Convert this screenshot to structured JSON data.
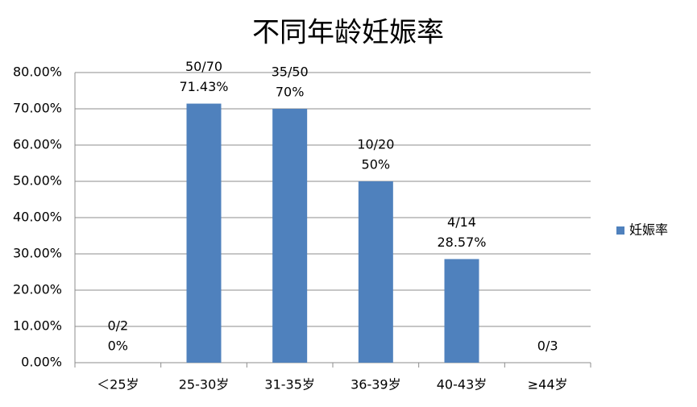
{
  "chart_data": {
    "type": "bar",
    "title": "不同年龄妊娠率",
    "categories": [
      "＜25岁",
      "25-30岁",
      "31-35岁",
      "36-39岁",
      "40-43岁",
      "≥44岁"
    ],
    "series": [
      {
        "name": "妊娠率",
        "color": "#4f81bd",
        "values": [
          0,
          71.43,
          70,
          50,
          28.57,
          0
        ],
        "value_labels": [
          "0%",
          "71.43%",
          "70%",
          "50%",
          "28.57%",
          null
        ],
        "fractions": [
          "0/2",
          "50/70",
          "35/50",
          "10/20",
          "4/14",
          "0/3"
        ]
      }
    ],
    "ylim": [
      0,
      80
    ],
    "yticks": [
      {
        "value": 0,
        "label": "0.00%"
      },
      {
        "value": 10,
        "label": "10.00%"
      },
      {
        "value": 20,
        "label": "20.00%"
      },
      {
        "value": 30,
        "label": "30.00%"
      },
      {
        "value": 40,
        "label": "40.00%"
      },
      {
        "value": 50,
        "label": "50.00%"
      },
      {
        "value": 60,
        "label": "60.00%"
      },
      {
        "value": 70,
        "label": "70.00%"
      },
      {
        "value": 80,
        "label": "80.00%"
      }
    ],
    "grid": true,
    "legend": "right"
  }
}
